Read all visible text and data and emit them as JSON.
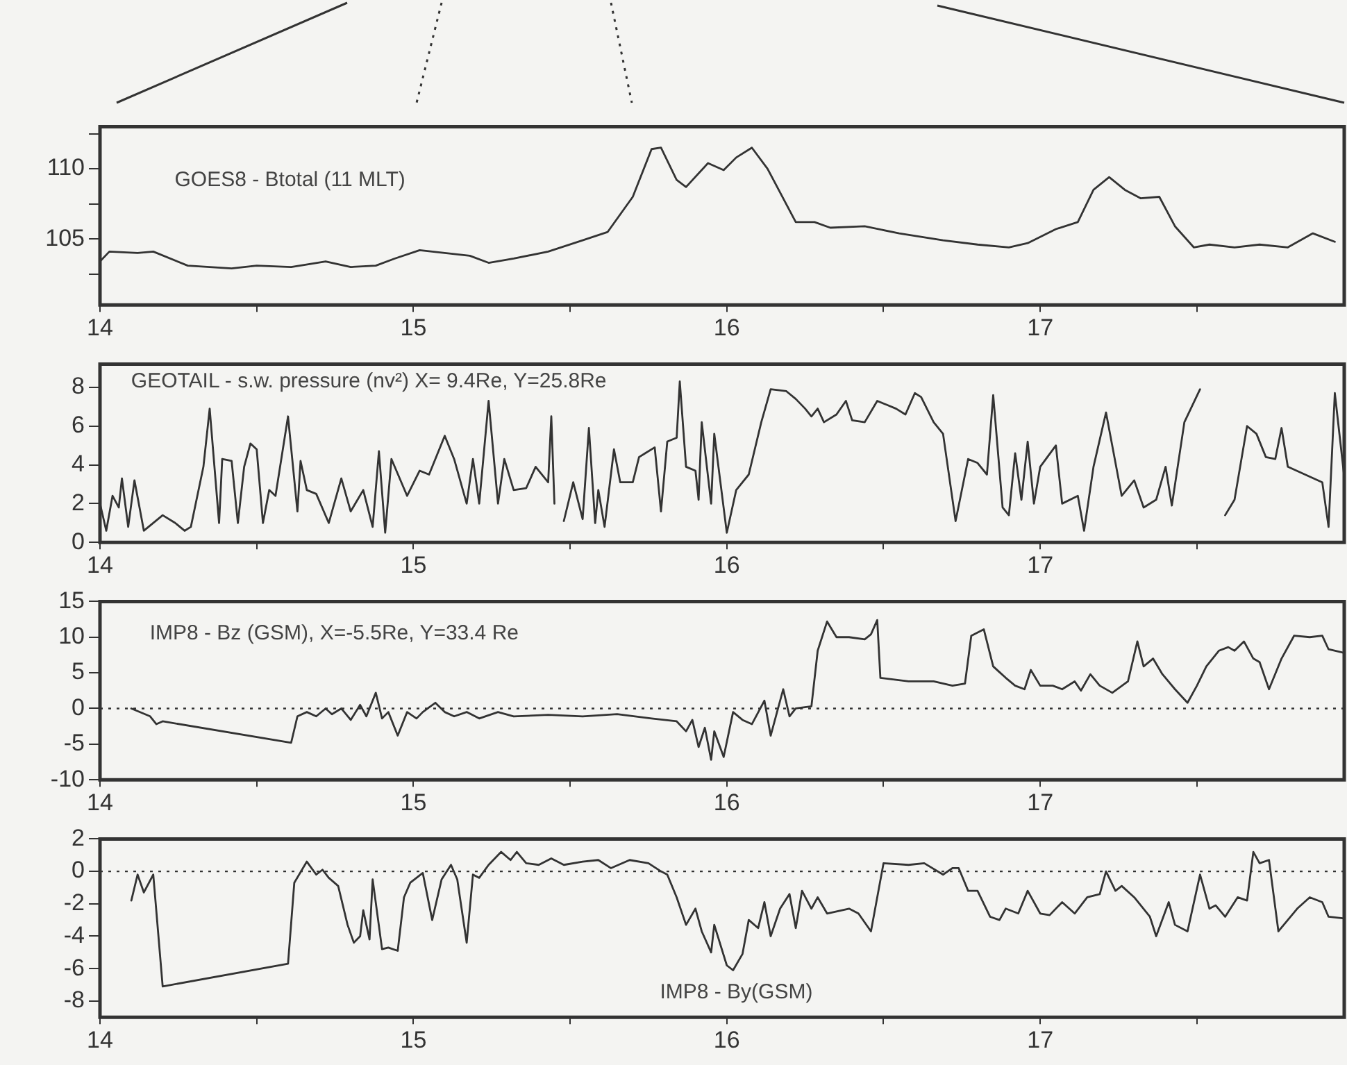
{
  "chart_data": [
    {
      "type": "line",
      "annotations": [
        "GOES8 - Btotal (11 MLT)"
      ],
      "marker": "none",
      "line_style": "solid",
      "xlim": [
        14,
        17.97
      ],
      "xticks": [
        14,
        {
          "value": 14.5,
          "label": null
        },
        15,
        {
          "value": 15.5,
          "label": null
        },
        16,
        {
          "value": 16.5,
          "label": null
        },
        17,
        {
          "value": 17.5,
          "label": null
        }
      ],
      "ylim": [
        100.3,
        113
      ],
      "yticks": [
        {
          "value": 102.5,
          "label": null
        },
        105,
        {
          "value": 107.5,
          "label": null
        },
        110,
        {
          "value": 112.5,
          "label": null
        }
      ],
      "series": [
        {
          "color": "#333333",
          "x": [
            14.0,
            14.03,
            14.12,
            14.17,
            14.28,
            14.42,
            14.5,
            14.61,
            14.72,
            14.8,
            14.88,
            14.94,
            15.02,
            15.1,
            15.18,
            15.24,
            15.32,
            15.43,
            15.54,
            15.62,
            15.7,
            15.76,
            15.79,
            15.84,
            15.87,
            15.94,
            15.99,
            16.03,
            16.08,
            16.13,
            16.22,
            16.28,
            16.33,
            16.44,
            16.55,
            16.69,
            16.8,
            16.9,
            16.96,
            17.05,
            17.12,
            17.17,
            17.22,
            17.27,
            17.32,
            17.38,
            17.43,
            17.49,
            17.54,
            17.62,
            17.7,
            17.79,
            17.87,
            17.94
          ],
          "values": [
            103.4,
            104.1,
            104.0,
            104.1,
            103.1,
            102.9,
            103.1,
            103.0,
            103.4,
            103.0,
            103.1,
            103.6,
            104.2,
            104.0,
            103.8,
            103.3,
            103.6,
            104.1,
            104.9,
            105.5,
            108.0,
            111.4,
            111.5,
            109.2,
            108.7,
            110.4,
            109.9,
            110.8,
            111.5,
            110.0,
            106.2,
            106.2,
            105.8,
            105.9,
            105.4,
            104.9,
            104.6,
            104.4,
            104.7,
            105.7,
            106.2,
            108.5,
            109.4,
            108.5,
            107.9,
            108.0,
            105.9,
            104.4,
            104.6,
            104.4,
            104.6,
            104.4,
            105.4,
            104.8
          ]
        }
      ]
    },
    {
      "type": "line",
      "annotations": [
        "GEOTAIL - s.w. pressure (nv²) X= 9.4Re, Y=25.8Re"
      ],
      "marker": "none",
      "line_style": "solid",
      "xlim": [
        14,
        17.97
      ],
      "xticks": [
        14,
        {
          "value": 14.5,
          "label": null
        },
        15,
        {
          "value": 15.5,
          "label": null
        },
        16,
        {
          "value": 16.5,
          "label": null
        },
        17,
        {
          "value": 17.5,
          "label": null
        }
      ],
      "ylim": [
        0,
        9.2
      ],
      "yticks": [
        0,
        2,
        4,
        6,
        8
      ],
      "series": [
        {
          "color": "#333333",
          "x": [
            14.0,
            14.02,
            14.04,
            14.06,
            14.07,
            14.09,
            14.11,
            14.14,
            14.2,
            14.24,
            14.27,
            14.29,
            14.33,
            14.35,
            14.38,
            14.39,
            14.42,
            14.44,
            14.46,
            14.48,
            14.5,
            14.52,
            14.54,
            14.56,
            14.6,
            14.63,
            14.64,
            14.66,
            14.69,
            14.73,
            14.77,
            14.8,
            14.84,
            14.87,
            14.89,
            14.91,
            14.93,
            14.98,
            15.02,
            15.05,
            15.07,
            15.1,
            15.13,
            15.17,
            15.19,
            15.21,
            15.24,
            15.27,
            15.29,
            15.32,
            15.36,
            15.39,
            15.43,
            15.44,
            15.45,
            15.47,
            15.48,
            15.51,
            15.54,
            15.56,
            15.58,
            15.59,
            15.61,
            15.64,
            15.66,
            15.7,
            15.72,
            15.74,
            15.77,
            15.79,
            15.81,
            15.84,
            15.85,
            15.87,
            15.9,
            15.91,
            15.92,
            15.95,
            15.96,
            16.0,
            16.03,
            16.07,
            16.11,
            16.14,
            16.19,
            16.22,
            16.25,
            16.27,
            16.29,
            16.31,
            16.35,
            16.38,
            16.4,
            16.44,
            16.48,
            16.51,
            16.54,
            16.57,
            16.6,
            16.62,
            16.66,
            16.69,
            16.73,
            16.77,
            16.8,
            16.83,
            16.85,
            16.88,
            16.9,
            16.92,
            16.94,
            16.96,
            16.98,
            17.0,
            17.05,
            17.07,
            17.12,
            17.14,
            17.17,
            17.21,
            17.26,
            17.3,
            17.33,
            17.37,
            17.4,
            17.42,
            17.46,
            17.51,
            17.54,
            17.59,
            17.62,
            17.66,
            17.69,
            17.72,
            17.75,
            17.77,
            17.79,
            17.9,
            17.92,
            17.94,
            17.97
          ],
          "values": [
            2.0,
            0.6,
            2.4,
            1.8,
            3.3,
            0.8,
            3.2,
            0.6,
            1.4,
            1.0,
            0.6,
            0.8,
            3.9,
            6.9,
            1.0,
            4.3,
            4.2,
            1.0,
            3.9,
            5.1,
            4.8,
            1.0,
            2.7,
            2.4,
            6.5,
            1.6,
            4.2,
            2.7,
            2.5,
            1.0,
            3.3,
            1.6,
            2.7,
            0.8,
            4.7,
            0.5,
            4.3,
            2.4,
            3.7,
            3.5,
            4.3,
            5.5,
            4.3,
            2.0,
            4.3,
            2.0,
            7.3,
            2.0,
            4.3,
            2.7,
            2.8,
            3.9,
            3.1,
            6.5,
            2.0,
            null,
            1.1,
            3.1,
            1.2,
            5.9,
            1.0,
            2.7,
            0.8,
            4.8,
            3.1,
            3.1,
            4.4,
            4.6,
            4.9,
            1.6,
            5.2,
            5.4,
            8.3,
            3.9,
            3.7,
            2.2,
            6.2,
            2.0,
            5.6,
            0.5,
            2.7,
            3.5,
            6.2,
            7.9,
            7.8,
            7.4,
            6.9,
            6.5,
            6.9,
            6.2,
            6.6,
            7.3,
            6.3,
            6.2,
            7.3,
            7.1,
            6.9,
            6.6,
            7.7,
            7.5,
            6.2,
            5.6,
            1.1,
            4.3,
            4.1,
            3.5,
            7.6,
            1.8,
            1.4,
            4.6,
            2.2,
            5.2,
            2.0,
            3.9,
            5.0,
            2.0,
            2.4,
            0.6,
            3.9,
            6.7,
            2.4,
            3.2,
            1.8,
            2.2,
            3.9,
            1.9,
            6.2,
            7.9,
            null,
            1.4,
            2.2,
            6.0,
            5.6,
            4.4,
            4.3,
            5.9,
            3.9,
            3.1,
            0.8,
            7.7,
            3.4
          ]
        }
      ]
    },
    {
      "type": "line",
      "annotations": [
        "IMP8 - Bz (GSM), X=-5.5Re, Y=33.4 Re"
      ],
      "marker": "none",
      "line_style": "solid",
      "xlim": [
        14,
        17.97
      ],
      "xticks": [
        14,
        {
          "value": 14.5,
          "label": null
        },
        15,
        {
          "value": 15.5,
          "label": null
        },
        16,
        {
          "value": 16.5,
          "label": null
        },
        17,
        {
          "value": 17.5,
          "label": null
        }
      ],
      "ylim": [
        -10,
        15
      ],
      "yticks": [
        -10,
        -5,
        0,
        5,
        10,
        15
      ],
      "ref_lines": [
        {
          "axis": "y",
          "value": 0,
          "line_style": "dotted"
        }
      ],
      "series": [
        {
          "color": "#333333",
          "x": [
            14.1,
            14.16,
            14.18,
            14.2,
            14.61,
            14.63,
            14.66,
            14.69,
            14.72,
            14.74,
            14.77,
            14.8,
            14.83,
            14.85,
            14.88,
            14.9,
            14.92,
            14.95,
            14.98,
            15.01,
            15.03,
            15.07,
            15.1,
            15.13,
            15.17,
            15.21,
            15.27,
            15.32,
            15.43,
            15.54,
            15.65,
            15.76,
            15.84,
            15.87,
            15.89,
            15.91,
            15.93,
            15.95,
            15.96,
            15.99,
            16.02,
            16.05,
            16.08,
            16.12,
            16.14,
            16.18,
            16.2,
            16.22,
            16.27,
            16.29,
            16.32,
            16.35,
            16.39,
            16.44,
            16.46,
            16.48,
            16.49,
            16.58,
            16.66,
            16.72,
            16.76,
            16.78,
            16.82,
            16.85,
            16.87,
            16.89,
            16.92,
            16.95,
            16.97,
            17.0,
            17.04,
            17.07,
            17.11,
            17.13,
            17.16,
            17.19,
            17.23,
            17.28,
            17.31,
            17.33,
            17.36,
            17.39,
            17.43,
            17.47,
            17.5,
            17.53,
            17.57,
            17.6,
            17.62,
            17.65,
            17.68,
            17.7,
            17.73,
            17.77,
            17.81,
            17.86,
            17.9,
            17.92,
            17.97
          ],
          "values": [
            0,
            -1.1,
            -2.2,
            -1.8,
            -4.8,
            -1.1,
            -0.5,
            -1.1,
            0,
            -0.8,
            0,
            -1.6,
            0.5,
            -1.1,
            2.2,
            -1.4,
            -0.5,
            -3.8,
            -0.5,
            -1.4,
            -0.5,
            0.8,
            -0.5,
            -1.1,
            -0.5,
            -1.4,
            -0.5,
            -1.1,
            -0.9,
            -1.1,
            -0.8,
            -1.4,
            -1.8,
            -3.2,
            -1.6,
            -5.4,
            -2.7,
            -7.2,
            -3.2,
            -6.8,
            -0.5,
            -1.6,
            -2.2,
            1.1,
            -3.8,
            2.7,
            -1.1,
            0,
            0.3,
            8.1,
            12.2,
            10.0,
            10.0,
            9.7,
            10.4,
            12.4,
            4.3,
            3.8,
            3.8,
            3.2,
            3.5,
            10.2,
            11.1,
            5.9,
            5.1,
            4.3,
            3.2,
            2.7,
            5.4,
            3.2,
            3.2,
            2.7,
            3.8,
            2.5,
            4.8,
            3.2,
            2.2,
            3.8,
            9.4,
            5.9,
            7.0,
            4.8,
            2.7,
            0.8,
            3.2,
            5.9,
            8.1,
            8.6,
            8.1,
            9.4,
            7.0,
            6.5,
            2.7,
            7.0,
            10.2,
            10.0,
            10.2,
            8.3,
            7.8
          ]
        }
      ]
    },
    {
      "type": "line",
      "annotations": [
        "IMP8 - By(GSM)"
      ],
      "marker": "none",
      "line_style": "solid",
      "xlim": [
        14,
        17.97
      ],
      "xticks": [
        14,
        {
          "value": 14.5,
          "label": null
        },
        15,
        {
          "value": 15.5,
          "label": null
        },
        16,
        {
          "value": 16.5,
          "label": null
        },
        17,
        {
          "value": 17.5,
          "label": null
        }
      ],
      "ylim": [
        -9,
        2
      ],
      "yticks": [
        -8,
        -6,
        -4,
        -2,
        0,
        2
      ],
      "ref_lines": [
        {
          "axis": "y",
          "value": 0,
          "line_style": "dotted"
        }
      ],
      "series": [
        {
          "color": "#333333",
          "x": [
            14.1,
            14.12,
            14.14,
            14.17,
            14.2,
            14.6,
            14.62,
            14.66,
            14.69,
            14.71,
            14.73,
            14.76,
            14.79,
            14.81,
            14.83,
            14.84,
            14.86,
            14.87,
            14.9,
            14.92,
            14.95,
            14.97,
            14.99,
            15.03,
            15.06,
            15.09,
            15.12,
            15.14,
            15.17,
            15.19,
            15.21,
            15.24,
            15.28,
            15.31,
            15.33,
            15.36,
            15.4,
            15.44,
            15.48,
            15.54,
            15.59,
            15.63,
            15.69,
            15.75,
            15.79,
            15.81,
            15.84,
            15.87,
            15.9,
            15.92,
            15.95,
            15.96,
            16.0,
            16.02,
            16.05,
            16.07,
            16.1,
            16.12,
            16.14,
            16.17,
            16.2,
            16.22,
            16.24,
            16.27,
            16.29,
            16.32,
            16.39,
            16.42,
            16.46,
            16.5,
            16.58,
            16.63,
            16.69,
            16.72,
            16.74,
            16.77,
            16.8,
            16.84,
            16.87,
            16.89,
            16.93,
            16.96,
            17.0,
            17.03,
            17.07,
            17.11,
            17.15,
            17.19,
            17.21,
            17.24,
            17.26,
            17.3,
            17.35,
            17.37,
            17.41,
            17.43,
            17.47,
            17.51,
            17.54,
            17.56,
            17.59,
            17.63,
            17.66,
            17.68,
            17.7,
            17.73,
            17.76,
            17.79,
            17.82,
            17.86,
            17.9,
            17.92,
            17.97
          ],
          "values": [
            -1.8,
            -0.2,
            -1.3,
            -0.2,
            -7.1,
            -5.7,
            -0.7,
            0.6,
            -0.2,
            0.1,
            -0.4,
            -0.9,
            -3.3,
            -4.4,
            -4.0,
            -2.4,
            -4.2,
            -0.5,
            -4.8,
            -4.7,
            -4.9,
            -1.6,
            -0.7,
            -0.1,
            -3.0,
            -0.5,
            0.4,
            -0.5,
            -4.4,
            -0.2,
            -0.4,
            0.4,
            1.2,
            0.7,
            1.2,
            0.5,
            0.4,
            0.8,
            0.4,
            0.6,
            0.7,
            0.2,
            0.7,
            0.5,
            0,
            -0.2,
            -1.6,
            -3.3,
            -2.3,
            -3.7,
            -5.0,
            -3.3,
            -5.8,
            -6.1,
            -5.1,
            -3.0,
            -3.5,
            -1.9,
            -4.0,
            -2.3,
            -1.4,
            -3.5,
            -1.2,
            -2.3,
            -1.6,
            -2.6,
            -2.3,
            -2.6,
            -3.7,
            0.5,
            0.4,
            0.5,
            -0.2,
            0.2,
            0.2,
            -1.2,
            -1.2,
            -2.8,
            -3.0,
            -2.3,
            -2.6,
            -1.2,
            -2.6,
            -2.7,
            -1.9,
            -2.6,
            -1.6,
            -1.4,
            0,
            -1.2,
            -0.9,
            -1.6,
            -2.8,
            -4.0,
            -1.9,
            -3.3,
            -3.7,
            -0.2,
            -2.3,
            -2.1,
            -2.8,
            -1.6,
            -1.8,
            1.2,
            0.5,
            0.7,
            -3.7,
            -3.0,
            -2.3,
            -1.6,
            -1.9,
            -2.8,
            -2.9
          ]
        }
      ]
    }
  ]
}
